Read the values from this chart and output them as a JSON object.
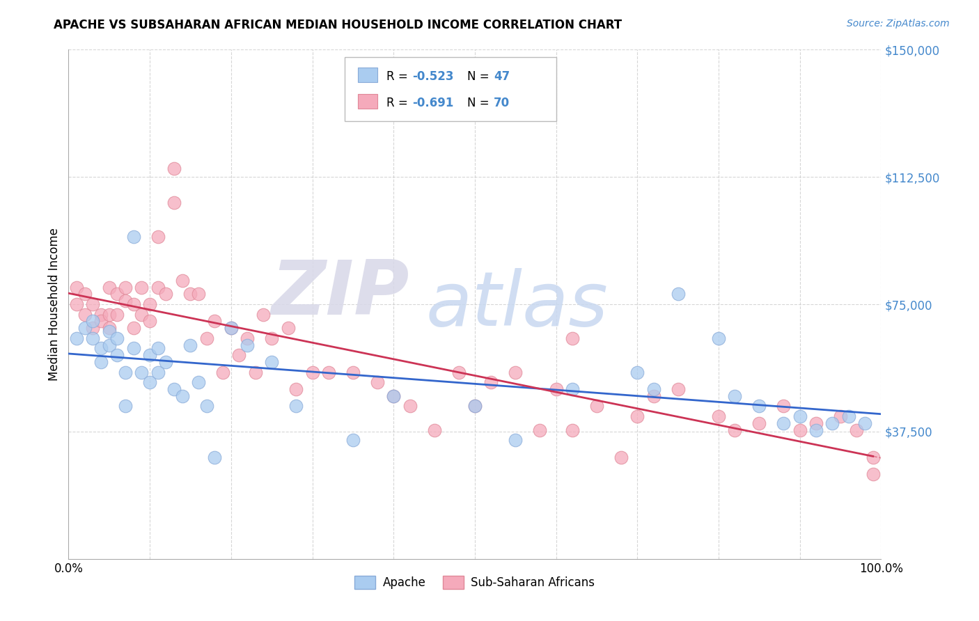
{
  "title": "APACHE VS SUBSAHARAN AFRICAN MEDIAN HOUSEHOLD INCOME CORRELATION CHART",
  "source": "Source: ZipAtlas.com",
  "ylabel": "Median Household Income",
  "watermark_zip": "ZIP",
  "watermark_atlas": "atlas",
  "background_color": "#ffffff",
  "plot_bg_color": "#ffffff",
  "grid_color": "#cccccc",
  "xlim": [
    0,
    1.0
  ],
  "ylim": [
    0,
    150000
  ],
  "yticks": [
    37500,
    75000,
    112500,
    150000
  ],
  "ytick_labels": [
    "$37,500",
    "$75,000",
    "$112,500",
    "$150,000"
  ],
  "apache_color": "#aaccf0",
  "apache_edge_color": "#88aad8",
  "subsaharan_color": "#f5aabb",
  "subsaharan_edge_color": "#e08898",
  "trendline_apache_color": "#3366cc",
  "trendline_subsaharan_color": "#cc3355",
  "apache_R": -0.523,
  "apache_N": 47,
  "subsaharan_R": -0.691,
  "subsaharan_N": 70,
  "apache_x": [
    0.01,
    0.02,
    0.03,
    0.03,
    0.04,
    0.04,
    0.05,
    0.05,
    0.06,
    0.06,
    0.07,
    0.07,
    0.08,
    0.08,
    0.09,
    0.1,
    0.1,
    0.11,
    0.11,
    0.12,
    0.13,
    0.14,
    0.15,
    0.16,
    0.17,
    0.18,
    0.2,
    0.22,
    0.25,
    0.28,
    0.35,
    0.4,
    0.5,
    0.55,
    0.62,
    0.7,
    0.72,
    0.75,
    0.8,
    0.82,
    0.85,
    0.88,
    0.9,
    0.92,
    0.94,
    0.96,
    0.98
  ],
  "apache_y": [
    65000,
    68000,
    70000,
    65000,
    62000,
    58000,
    63000,
    67000,
    60000,
    65000,
    55000,
    45000,
    95000,
    62000,
    55000,
    60000,
    52000,
    55000,
    62000,
    58000,
    50000,
    48000,
    63000,
    52000,
    45000,
    30000,
    68000,
    63000,
    58000,
    45000,
    35000,
    48000,
    45000,
    35000,
    50000,
    55000,
    50000,
    78000,
    65000,
    48000,
    45000,
    40000,
    42000,
    38000,
    40000,
    42000,
    40000
  ],
  "subsaharan_x": [
    0.01,
    0.01,
    0.02,
    0.02,
    0.03,
    0.03,
    0.04,
    0.04,
    0.05,
    0.05,
    0.05,
    0.06,
    0.06,
    0.07,
    0.07,
    0.08,
    0.08,
    0.09,
    0.09,
    0.1,
    0.1,
    0.11,
    0.11,
    0.12,
    0.13,
    0.13,
    0.14,
    0.15,
    0.16,
    0.17,
    0.18,
    0.19,
    0.2,
    0.21,
    0.22,
    0.23,
    0.24,
    0.25,
    0.27,
    0.28,
    0.3,
    0.32,
    0.35,
    0.38,
    0.4,
    0.42,
    0.45,
    0.48,
    0.5,
    0.52,
    0.55,
    0.58,
    0.6,
    0.62,
    0.62,
    0.65,
    0.68,
    0.7,
    0.72,
    0.75,
    0.8,
    0.82,
    0.85,
    0.88,
    0.9,
    0.92,
    0.95,
    0.97,
    0.99,
    0.99
  ],
  "subsaharan_y": [
    80000,
    75000,
    78000,
    72000,
    75000,
    68000,
    72000,
    70000,
    80000,
    72000,
    68000,
    78000,
    72000,
    80000,
    76000,
    75000,
    68000,
    80000,
    72000,
    75000,
    70000,
    95000,
    80000,
    78000,
    105000,
    115000,
    82000,
    78000,
    78000,
    65000,
    70000,
    55000,
    68000,
    60000,
    65000,
    55000,
    72000,
    65000,
    68000,
    50000,
    55000,
    55000,
    55000,
    52000,
    48000,
    45000,
    38000,
    55000,
    45000,
    52000,
    55000,
    38000,
    50000,
    38000,
    65000,
    45000,
    30000,
    42000,
    48000,
    50000,
    42000,
    38000,
    40000,
    45000,
    38000,
    40000,
    42000,
    38000,
    25000,
    30000
  ]
}
